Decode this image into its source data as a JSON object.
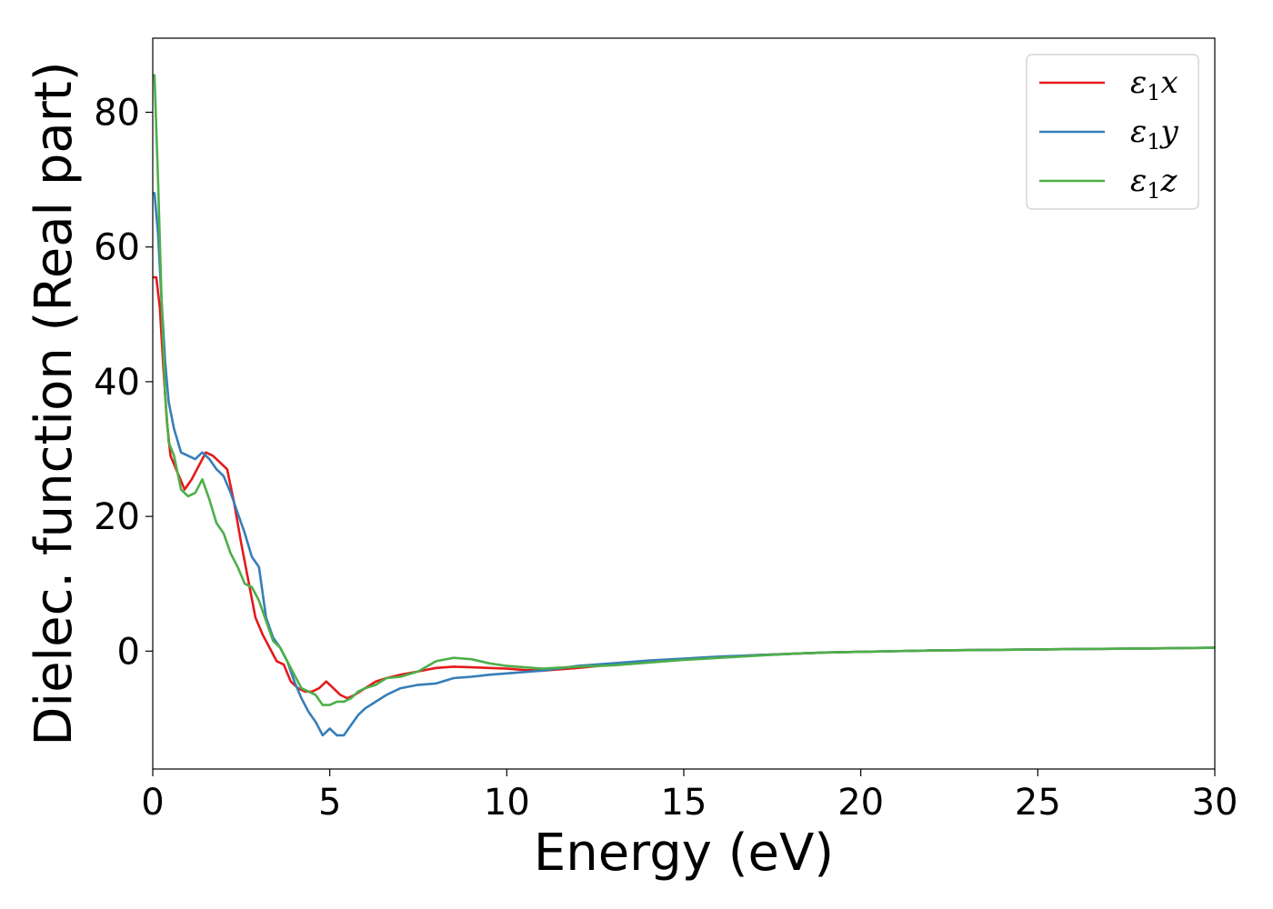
{
  "chart_data": {
    "type": "line",
    "title": "",
    "xlabel": "Energy (eV)",
    "ylabel": "Dielec. function (Real part)",
    "xlim": [
      0,
      30
    ],
    "ylim": [
      -17.5,
      91
    ],
    "xticks": [
      0,
      5,
      10,
      15,
      20,
      25,
      30
    ],
    "yticks": [
      0,
      20,
      40,
      60,
      80
    ],
    "grid": false,
    "legend_position": "top-right",
    "series": [
      {
        "name": "ε₁x",
        "legend_base": "ε",
        "legend_sub": "1",
        "legend_axis": "x",
        "color": "#e41a1c",
        "x": [
          0.0,
          0.1,
          0.2,
          0.3,
          0.4,
          0.5,
          0.7,
          0.9,
          1.1,
          1.3,
          1.5,
          1.7,
          1.9,
          2.1,
          2.3,
          2.5,
          2.7,
          2.9,
          3.1,
          3.3,
          3.5,
          3.7,
          3.9,
          4.1,
          4.3,
          4.5,
          4.7,
          4.9,
          5.1,
          5.3,
          5.5,
          5.7,
          6.0,
          6.3,
          6.6,
          7.0,
          7.5,
          8.0,
          8.5,
          9.0,
          9.5,
          10.0,
          10.5,
          11.0,
          12.0,
          13.0,
          14.0,
          15.0,
          16.0,
          17.0,
          18.0,
          19.0,
          20.0,
          22.0,
          24.0,
          26.0,
          28.0,
          30.0
        ],
        "y": [
          55.5,
          55.5,
          51.0,
          42.0,
          34.0,
          29.0,
          26.5,
          24.0,
          25.5,
          27.5,
          29.5,
          29.0,
          28.0,
          27.0,
          22.0,
          16.0,
          10.5,
          5.0,
          2.5,
          0.5,
          -1.5,
          -2.0,
          -4.5,
          -5.5,
          -6.0,
          -6.0,
          -5.5,
          -4.5,
          -5.5,
          -6.5,
          -7.0,
          -6.5,
          -5.5,
          -4.5,
          -4.0,
          -3.5,
          -3.0,
          -2.5,
          -2.3,
          -2.4,
          -2.5,
          -2.6,
          -2.8,
          -2.9,
          -2.5,
          -2.0,
          -1.5,
          -1.2,
          -0.9,
          -0.6,
          -0.4,
          -0.2,
          -0.1,
          0.1,
          0.2,
          0.3,
          0.4,
          0.5
        ]
      },
      {
        "name": "ε₁y",
        "legend_base": "ε",
        "legend_sub": "1",
        "legend_axis": "y",
        "color": "#377eb8",
        "x": [
          0.0,
          0.05,
          0.15,
          0.25,
          0.35,
          0.45,
          0.6,
          0.8,
          1.0,
          1.2,
          1.4,
          1.6,
          1.8,
          2.0,
          2.2,
          2.4,
          2.6,
          2.8,
          3.0,
          3.2,
          3.4,
          3.6,
          3.8,
          4.0,
          4.2,
          4.4,
          4.6,
          4.8,
          5.0,
          5.2,
          5.4,
          5.6,
          5.8,
          6.0,
          6.3,
          6.6,
          7.0,
          7.5,
          8.0,
          8.5,
          9.0,
          9.5,
          10.0,
          10.5,
          11.0,
          12.0,
          13.0,
          14.0,
          15.0,
          16.0,
          17.0,
          18.0,
          19.0,
          20.0,
          22.0,
          24.0,
          26.0,
          28.0,
          30.0
        ],
        "y": [
          68.0,
          68.0,
          62.0,
          52.0,
          43.0,
          37.0,
          33.0,
          29.5,
          29.0,
          28.5,
          29.5,
          28.5,
          27.0,
          26.0,
          23.5,
          20.5,
          17.5,
          14.0,
          12.5,
          5.0,
          2.0,
          0.5,
          -1.5,
          -4.5,
          -7.0,
          -9.0,
          -10.5,
          -12.5,
          -11.5,
          -12.5,
          -12.5,
          -11.0,
          -9.5,
          -8.5,
          -7.5,
          -6.5,
          -5.5,
          -5.0,
          -4.8,
          -4.0,
          -3.8,
          -3.5,
          -3.3,
          -3.1,
          -2.9,
          -2.2,
          -1.8,
          -1.4,
          -1.1,
          -0.8,
          -0.6,
          -0.4,
          -0.2,
          -0.1,
          0.1,
          0.2,
          0.3,
          0.4,
          0.5
        ]
      },
      {
        "name": "ε₁z",
        "legend_base": "ε",
        "legend_sub": "1",
        "legend_axis": "z",
        "color": "#4daf4a",
        "x": [
          0.0,
          0.05,
          0.15,
          0.25,
          0.35,
          0.45,
          0.6,
          0.8,
          1.0,
          1.2,
          1.4,
          1.6,
          1.8,
          2.0,
          2.2,
          2.4,
          2.6,
          2.8,
          3.0,
          3.2,
          3.4,
          3.6,
          3.8,
          4.0,
          4.2,
          4.4,
          4.6,
          4.8,
          5.0,
          5.2,
          5.4,
          5.6,
          5.8,
          6.0,
          6.3,
          6.6,
          7.0,
          7.5,
          8.0,
          8.5,
          9.0,
          9.5,
          10.0,
          10.5,
          11.0,
          12.0,
          13.0,
          14.0,
          15.0,
          16.0,
          17.0,
          18.0,
          19.0,
          20.0,
          22.0,
          24.0,
          26.0,
          28.0,
          30.0
        ],
        "y": [
          85.5,
          85.5,
          70.0,
          52.0,
          38.0,
          31.0,
          29.0,
          24.0,
          23.0,
          23.5,
          25.5,
          22.5,
          19.0,
          17.5,
          14.5,
          12.5,
          10.0,
          9.5,
          7.5,
          4.5,
          1.5,
          0.5,
          -1.5,
          -3.5,
          -5.5,
          -6.0,
          -6.5,
          -8.0,
          -8.0,
          -7.5,
          -7.5,
          -7.0,
          -6.0,
          -5.5,
          -5.0,
          -4.0,
          -3.8,
          -3.0,
          -1.5,
          -1.0,
          -1.2,
          -1.8,
          -2.2,
          -2.4,
          -2.6,
          -2.3,
          -2.1,
          -1.7,
          -1.3,
          -1.0,
          -0.7,
          -0.4,
          -0.2,
          -0.1,
          0.1,
          0.2,
          0.3,
          0.4,
          0.5
        ]
      }
    ]
  }
}
